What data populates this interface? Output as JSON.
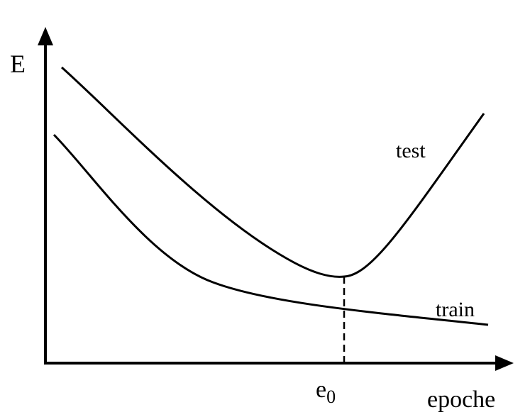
{
  "chart_data": {
    "type": "line",
    "title": "",
    "xlabel": "epoche",
    "ylabel": "E",
    "grid": false,
    "legend": "none",
    "marker_label_base": "e",
    "marker_label_sub": "0",
    "series": [
      {
        "name": "test",
        "label_position": "right-upper"
      },
      {
        "name": "train",
        "label_position": "right-lower"
      }
    ],
    "colors": {
      "line": "#000000",
      "background": "#ffffff"
    }
  }
}
